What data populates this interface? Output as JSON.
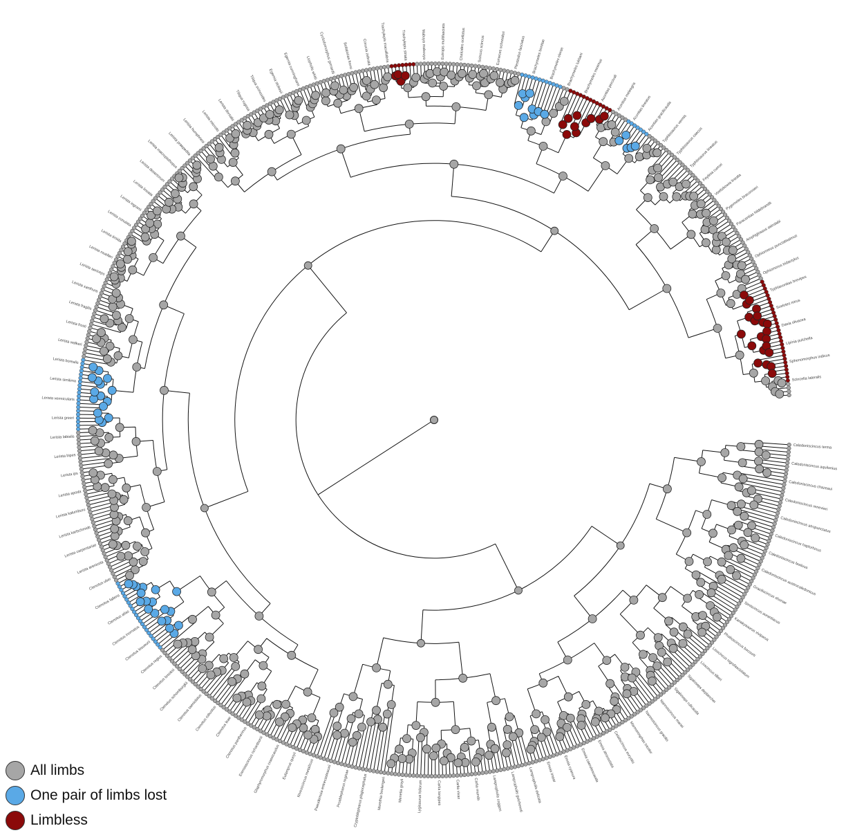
{
  "colors": {
    "all_limbs": "#a6a6a6",
    "one_pair_lost": "#5aa9e6",
    "limbless": "#8b0a0a"
  },
  "legend": [
    {
      "label": "All limbs",
      "color": "#a6a6a6"
    },
    {
      "label": "One pair of limbs lost",
      "color": "#5aa9e6"
    },
    {
      "label": "Limbless",
      "color": "#8b0a0a"
    }
  ],
  "tip_labels": [
    "Caledoniscincus terma",
    "Caledoniscincus aquilonius",
    "Caledoniscincus chazeaui",
    "Caledoniscincus renevieri",
    "Caledoniscincus atropunctatus",
    "Caledoniscincus haplorhinus",
    "Caledoniscincus festivus",
    "Caledoniscincus austrocaledonicus",
    "Graciliscincus shonae",
    "Simiscincus aurantiacus",
    "Kanakysaurus viviparus",
    "Phoboscincus bocourti",
    "Lioscincus nigrofasciolatum",
    "Lioscincus tillieri",
    "Sigaloseps deplanchei",
    "Sigaloseps ruficauda",
    "Nannoscincus mariei",
    "Nannoscincus gracilis",
    "Marmorosphax tricolor",
    "Celatiscincus euryotis",
    "Emoia atrocostata",
    "Emoia caeruleocauda",
    "Emoia cyanura",
    "Emoia impar",
    "Lampropholis delicata",
    "Lampropholis guichenoti",
    "Lampropholis coggeri",
    "Carlia munda",
    "Carlia vivax",
    "Carlia longipes",
    "Lygisaurus foliorum",
    "Menetia greyii",
    "Morethia boulengeri",
    "Cryptoblepharus plagiocephalus",
    "Proablepharus reginae",
    "Pseudemoia entrecasteauxii",
    "Niveoscincus metallicus",
    "Eulamprus quoyii",
    "Glaphyromorphus crassicaudus",
    "Eremiascincus richardsonii",
    "Ctenotus pantherinus",
    "Ctenotus leae",
    "Ctenotus robustus",
    "Ctenotus taeniolatus",
    "Ctenotus schomburgkii",
    "Ctenotus brooksi",
    "Ctenotus regius",
    "Ctenotus lesueurii",
    "Ctenotus inornatus",
    "Ctenotus atlas",
    "Ctenotus fallens",
    "Ctenotus uber",
    "Lerista arenicola",
    "Lerista carpentariae",
    "Lerista karlschmidti",
    "Lerista kalumburu",
    "Lerista apoda",
    "Lerista ips",
    "Lerista bipes",
    "Lerista labialis",
    "Lerista greeri",
    "Lerista vermicularis",
    "Lerista similima",
    "Lerista borealis",
    "Lerista walkeri",
    "Lerista frosti",
    "Lerista fragilis",
    "Lerista xanthura",
    "Lerista aericeps",
    "Lerista muelleri",
    "Lerista timida",
    "Lerista zonulata",
    "Lerista ingrami",
    "Lerista lineata",
    "Lerista desertorum",
    "Lerista macropisthopus",
    "Lerista praepedita",
    "Lerista humphriesi",
    "Lerista microtis",
    "Lerista dorsalis",
    "Tiliqua rugosa",
    "Tiliqua scincoides",
    "Egernia stokesii",
    "Egernia cunninghami",
    "Liopholis whitii",
    "Cyclodomorphus gerrardii",
    "Bellatorias frerei",
    "Corucia zebrata",
    "Trachylepis maculilabris",
    "Trachylepis striata",
    "Mabuya mabouya",
    "Eutropis multifasciata",
    "Chalcides ocellatus",
    "Scincus scincus",
    "Eumeces schneideri",
    "Plestiodon fasciatus",
    "Brachymeles bonitae",
    "Brachymeles elerae",
    "Brachymeles lukbani",
    "Brachymeles minimus",
    "Acontias percivali",
    "Acontias meleagris",
    "Acontias lineatus",
    "Acontias gracilicauda",
    "Typhlosaurus vermis",
    "Typhlosaurus caecus",
    "Typhlosaurus lineatus",
    "Feylinia currori",
    "Voeltzkowia lineata",
    "Pygomeles braconnieri",
    "Paracontias hildebrandti",
    "Amphiglossus astrolabi",
    "Ophiomorus punctatissimus",
    "Ophiomorus tridactylus",
    "Typhlacontias brevipes",
    "Scelotes mirus",
    "Dasia olivacea",
    "Lipinia pulchella",
    "Sphenomorphus indicus",
    "Scincella lateralis"
  ],
  "chart_data": {
    "type": "circular phylogenetic tree",
    "legend": [
      "All limbs",
      "One pair of limbs lost",
      "Limbless"
    ]
  }
}
